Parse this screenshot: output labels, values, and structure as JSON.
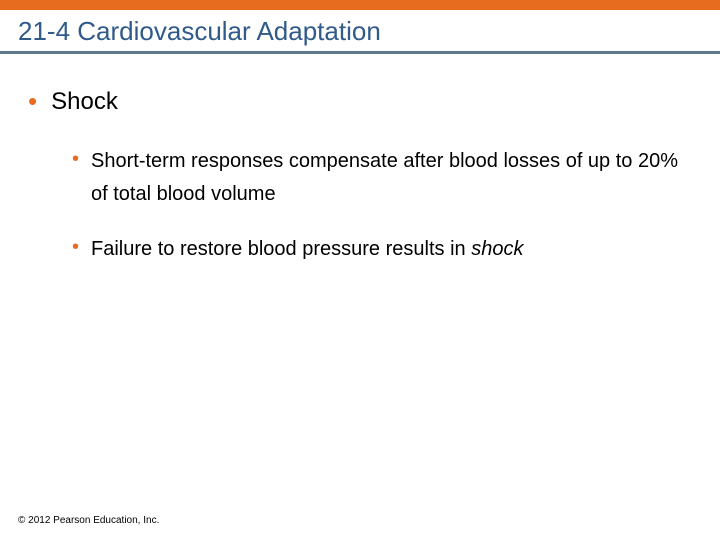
{
  "colors": {
    "accent": "#e86c1f",
    "underline": "#5b7a8c",
    "bullet": "#e86c1f",
    "title_text": "#2f5a8a",
    "background": "#ffffff"
  },
  "title": "21-4 Cardiovascular Adaptation",
  "bullets": {
    "level1": {
      "text": "Shock"
    },
    "level2": [
      {
        "parts": [
          {
            "text": "Short-term responses compensate after blood losses of up to 20% of total blood volume",
            "italic": false
          }
        ]
      },
      {
        "parts": [
          {
            "text": "Failure to restore blood pressure results in ",
            "italic": false
          },
          {
            "text": "shock",
            "italic": true
          }
        ]
      }
    ]
  },
  "copyright": "© 2012 Pearson Education, Inc.",
  "typography": {
    "title_fontsize": 26,
    "l1_fontsize": 24,
    "l2_fontsize": 20,
    "copyright_fontsize": 10
  }
}
